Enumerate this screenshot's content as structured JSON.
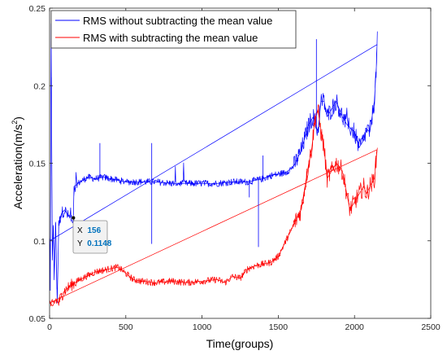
{
  "chart_data": {
    "type": "line",
    "xlabel": "Time(groups)",
    "ylabel_main": "Acceleration(m/s",
    "ylabel_sup": "2",
    "ylabel_close": ")",
    "xlim": [
      0,
      2500
    ],
    "ylim": [
      0.05,
      0.25
    ],
    "xticks": [
      0,
      500,
      1000,
      1500,
      2000,
      2500
    ],
    "yticks": [
      0.05,
      0.1,
      0.15,
      0.2,
      0.25
    ],
    "grid": false,
    "legend_position": "top-left",
    "series": [
      {
        "name": "RMS without subtracting the mean value",
        "color": "#0000ff",
        "x": [
          0,
          5,
          10,
          18,
          25,
          30,
          40,
          50,
          60,
          70,
          80,
          100,
          120,
          140,
          156,
          160,
          175,
          200,
          250,
          300,
          350,
          400,
          450,
          500,
          600,
          700,
          800,
          900,
          1000,
          1100,
          1200,
          1300,
          1400,
          1450,
          1500,
          1550,
          1600,
          1650,
          1700,
          1730,
          1760,
          1780,
          1800,
          1820,
          1850,
          1880,
          1900,
          1920,
          1950,
          1980,
          2000,
          2030,
          2060,
          2080,
          2100,
          2130,
          2145,
          2150
        ],
        "y": [
          0.1,
          0.068,
          0.24,
          0.09,
          0.11,
          0.075,
          0.112,
          0.06,
          0.11,
          0.115,
          0.118,
          0.12,
          0.116,
          0.115,
          0.1148,
          0.135,
          0.136,
          0.138,
          0.141,
          0.14,
          0.141,
          0.14,
          0.139,
          0.138,
          0.138,
          0.138,
          0.137,
          0.137,
          0.137,
          0.137,
          0.138,
          0.138,
          0.14,
          0.142,
          0.143,
          0.144,
          0.148,
          0.158,
          0.175,
          0.18,
          0.17,
          0.19,
          0.19,
          0.18,
          0.185,
          0.19,
          0.185,
          0.18,
          0.175,
          0.172,
          0.17,
          0.16,
          0.165,
          0.172,
          0.17,
          0.19,
          0.215,
          0.235
        ]
      },
      {
        "name": "RMS with subtracting the mean value",
        "color": "#ff0000",
        "x": [
          0,
          20,
          40,
          60,
          80,
          100,
          150,
          200,
          300,
          400,
          450,
          500,
          550,
          600,
          700,
          800,
          900,
          1000,
          1100,
          1150,
          1200,
          1250,
          1300,
          1350,
          1400,
          1450,
          1500,
          1550,
          1600,
          1650,
          1700,
          1720,
          1740,
          1760,
          1780,
          1800,
          1820,
          1850,
          1880,
          1900,
          1920,
          1950,
          1970,
          2000,
          2030,
          2060,
          2080,
          2100,
          2130,
          2145,
          2150
        ],
        "y": [
          0.06,
          0.058,
          0.062,
          0.06,
          0.065,
          0.068,
          0.072,
          0.075,
          0.08,
          0.082,
          0.083,
          0.079,
          0.075,
          0.074,
          0.073,
          0.074,
          0.073,
          0.074,
          0.075,
          0.073,
          0.077,
          0.076,
          0.082,
          0.084,
          0.085,
          0.086,
          0.09,
          0.1,
          0.11,
          0.12,
          0.15,
          0.16,
          0.178,
          0.185,
          0.17,
          0.16,
          0.14,
          0.145,
          0.15,
          0.148,
          0.145,
          0.13,
          0.12,
          0.125,
          0.13,
          0.135,
          0.13,
          0.135,
          0.14,
          0.155,
          0.16
        ]
      }
    ],
    "datatip": {
      "x_label": "X",
      "x_value": "156",
      "y_label": "Y",
      "y_value": "0.1148"
    }
  }
}
